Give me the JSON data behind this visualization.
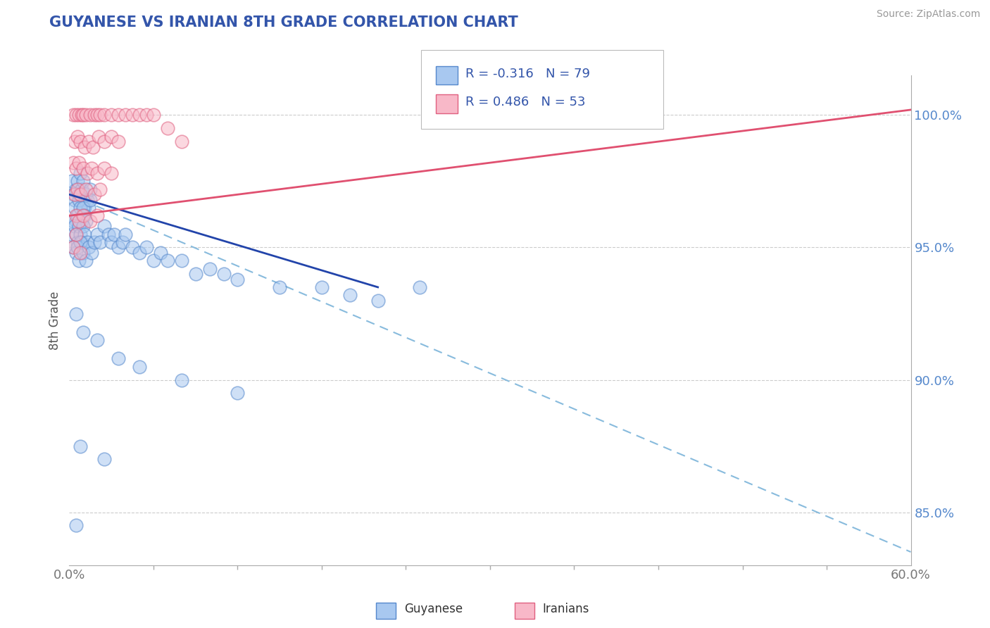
{
  "title": "GUYANESE VS IRANIAN 8TH GRADE CORRELATION CHART",
  "source_text": "Source: ZipAtlas.com",
  "ylabel": "8th Grade",
  "xlim": [
    0.0,
    60.0
  ],
  "ylim": [
    83.0,
    101.5
  ],
  "y_ticks": [
    85.0,
    90.0,
    95.0,
    100.0
  ],
  "x_ticks": [
    0.0,
    60.0
  ],
  "blue_R": -0.316,
  "blue_N": 79,
  "pink_R": 0.486,
  "pink_N": 53,
  "legend_label1": "Guyanese",
  "legend_label2": "Iranians",
  "blue_fill_color": "#a8c8f0",
  "blue_edge_color": "#5588cc",
  "pink_fill_color": "#f8b8c8",
  "pink_edge_color": "#e06080",
  "blue_line_color": "#2244aa",
  "pink_line_color": "#e05070",
  "dashed_line_color": "#88bbdd",
  "background_color": "#ffffff",
  "title_color": "#3355aa",
  "source_color": "#999999",
  "axis_tick_color": "#5588cc",
  "ylabel_color": "#555555",
  "blue_scatter": [
    [
      0.2,
      97.5
    ],
    [
      0.3,
      97.0
    ],
    [
      0.4,
      96.8
    ],
    [
      0.5,
      97.2
    ],
    [
      0.5,
      96.0
    ],
    [
      0.6,
      97.5
    ],
    [
      0.7,
      97.0
    ],
    [
      0.8,
      97.8
    ],
    [
      0.9,
      97.2
    ],
    [
      1.0,
      97.5
    ],
    [
      1.1,
      96.5
    ],
    [
      1.2,
      97.0
    ],
    [
      1.3,
      96.8
    ],
    [
      1.4,
      96.5
    ],
    [
      1.5,
      97.2
    ],
    [
      0.3,
      96.0
    ],
    [
      0.4,
      96.5
    ],
    [
      0.6,
      96.2
    ],
    [
      0.7,
      96.8
    ],
    [
      0.8,
      96.5
    ],
    [
      0.9,
      96.0
    ],
    [
      1.0,
      96.5
    ],
    [
      1.1,
      96.2
    ],
    [
      1.2,
      96.0
    ],
    [
      1.5,
      96.8
    ],
    [
      0.2,
      95.5
    ],
    [
      0.4,
      95.8
    ],
    [
      0.5,
      95.5
    ],
    [
      0.6,
      95.2
    ],
    [
      0.7,
      95.8
    ],
    [
      0.8,
      95.5
    ],
    [
      0.9,
      95.2
    ],
    [
      1.0,
      95.8
    ],
    [
      1.1,
      95.5
    ],
    [
      1.3,
      95.2
    ],
    [
      0.3,
      95.0
    ],
    [
      0.5,
      94.8
    ],
    [
      0.6,
      95.0
    ],
    [
      0.7,
      94.5
    ],
    [
      0.8,
      95.2
    ],
    [
      1.0,
      94.8
    ],
    [
      1.2,
      94.5
    ],
    [
      1.4,
      95.0
    ],
    [
      1.6,
      94.8
    ],
    [
      1.8,
      95.2
    ],
    [
      2.0,
      95.5
    ],
    [
      2.2,
      95.2
    ],
    [
      2.5,
      95.8
    ],
    [
      2.8,
      95.5
    ],
    [
      3.0,
      95.2
    ],
    [
      3.2,
      95.5
    ],
    [
      3.5,
      95.0
    ],
    [
      3.8,
      95.2
    ],
    [
      4.0,
      95.5
    ],
    [
      4.5,
      95.0
    ],
    [
      5.0,
      94.8
    ],
    [
      5.5,
      95.0
    ],
    [
      6.0,
      94.5
    ],
    [
      6.5,
      94.8
    ],
    [
      7.0,
      94.5
    ],
    [
      8.0,
      94.5
    ],
    [
      9.0,
      94.0
    ],
    [
      10.0,
      94.2
    ],
    [
      11.0,
      94.0
    ],
    [
      12.0,
      93.8
    ],
    [
      15.0,
      93.5
    ],
    [
      18.0,
      93.5
    ],
    [
      20.0,
      93.2
    ],
    [
      22.0,
      93.0
    ],
    [
      25.0,
      93.5
    ],
    [
      0.5,
      92.5
    ],
    [
      1.0,
      91.8
    ],
    [
      2.0,
      91.5
    ],
    [
      3.5,
      90.8
    ],
    [
      5.0,
      90.5
    ],
    [
      8.0,
      90.0
    ],
    [
      12.0,
      89.5
    ],
    [
      0.8,
      87.5
    ],
    [
      2.5,
      87.0
    ],
    [
      0.5,
      84.5
    ]
  ],
  "pink_scatter": [
    [
      0.3,
      100.0
    ],
    [
      0.5,
      100.0
    ],
    [
      0.7,
      100.0
    ],
    [
      0.9,
      100.0
    ],
    [
      1.0,
      100.0
    ],
    [
      1.2,
      100.0
    ],
    [
      1.5,
      100.0
    ],
    [
      1.8,
      100.0
    ],
    [
      2.0,
      100.0
    ],
    [
      2.2,
      100.0
    ],
    [
      2.5,
      100.0
    ],
    [
      3.0,
      100.0
    ],
    [
      3.5,
      100.0
    ],
    [
      4.0,
      100.0
    ],
    [
      4.5,
      100.0
    ],
    [
      5.0,
      100.0
    ],
    [
      5.5,
      100.0
    ],
    [
      6.0,
      100.0
    ],
    [
      7.0,
      99.5
    ],
    [
      8.0,
      99.0
    ],
    [
      0.4,
      99.0
    ],
    [
      0.6,
      99.2
    ],
    [
      0.8,
      99.0
    ],
    [
      1.1,
      98.8
    ],
    [
      1.4,
      99.0
    ],
    [
      1.7,
      98.8
    ],
    [
      2.1,
      99.2
    ],
    [
      2.5,
      99.0
    ],
    [
      3.0,
      99.2
    ],
    [
      3.5,
      99.0
    ],
    [
      0.3,
      98.2
    ],
    [
      0.5,
      98.0
    ],
    [
      0.7,
      98.2
    ],
    [
      1.0,
      98.0
    ],
    [
      1.3,
      97.8
    ],
    [
      1.6,
      98.0
    ],
    [
      2.0,
      97.8
    ],
    [
      2.5,
      98.0
    ],
    [
      3.0,
      97.8
    ],
    [
      0.4,
      97.0
    ],
    [
      0.6,
      97.2
    ],
    [
      0.8,
      97.0
    ],
    [
      1.2,
      97.2
    ],
    [
      1.8,
      97.0
    ],
    [
      2.2,
      97.2
    ],
    [
      0.5,
      96.2
    ],
    [
      0.7,
      96.0
    ],
    [
      1.0,
      96.2
    ],
    [
      1.5,
      96.0
    ],
    [
      2.0,
      96.2
    ],
    [
      0.3,
      95.0
    ],
    [
      0.5,
      95.5
    ],
    [
      0.8,
      94.8
    ]
  ],
  "blue_trend_x0": 0.0,
  "blue_trend_y0": 97.0,
  "blue_trend_x1": 22.0,
  "blue_trend_y1": 93.5,
  "pink_trend_x0": 0.0,
  "pink_trend_y0": 96.2,
  "pink_trend_x1": 60.0,
  "pink_trend_y1": 100.2,
  "dashed_x0": 0.0,
  "dashed_y0": 97.0,
  "dashed_x1": 60.0,
  "dashed_y1": 83.5
}
